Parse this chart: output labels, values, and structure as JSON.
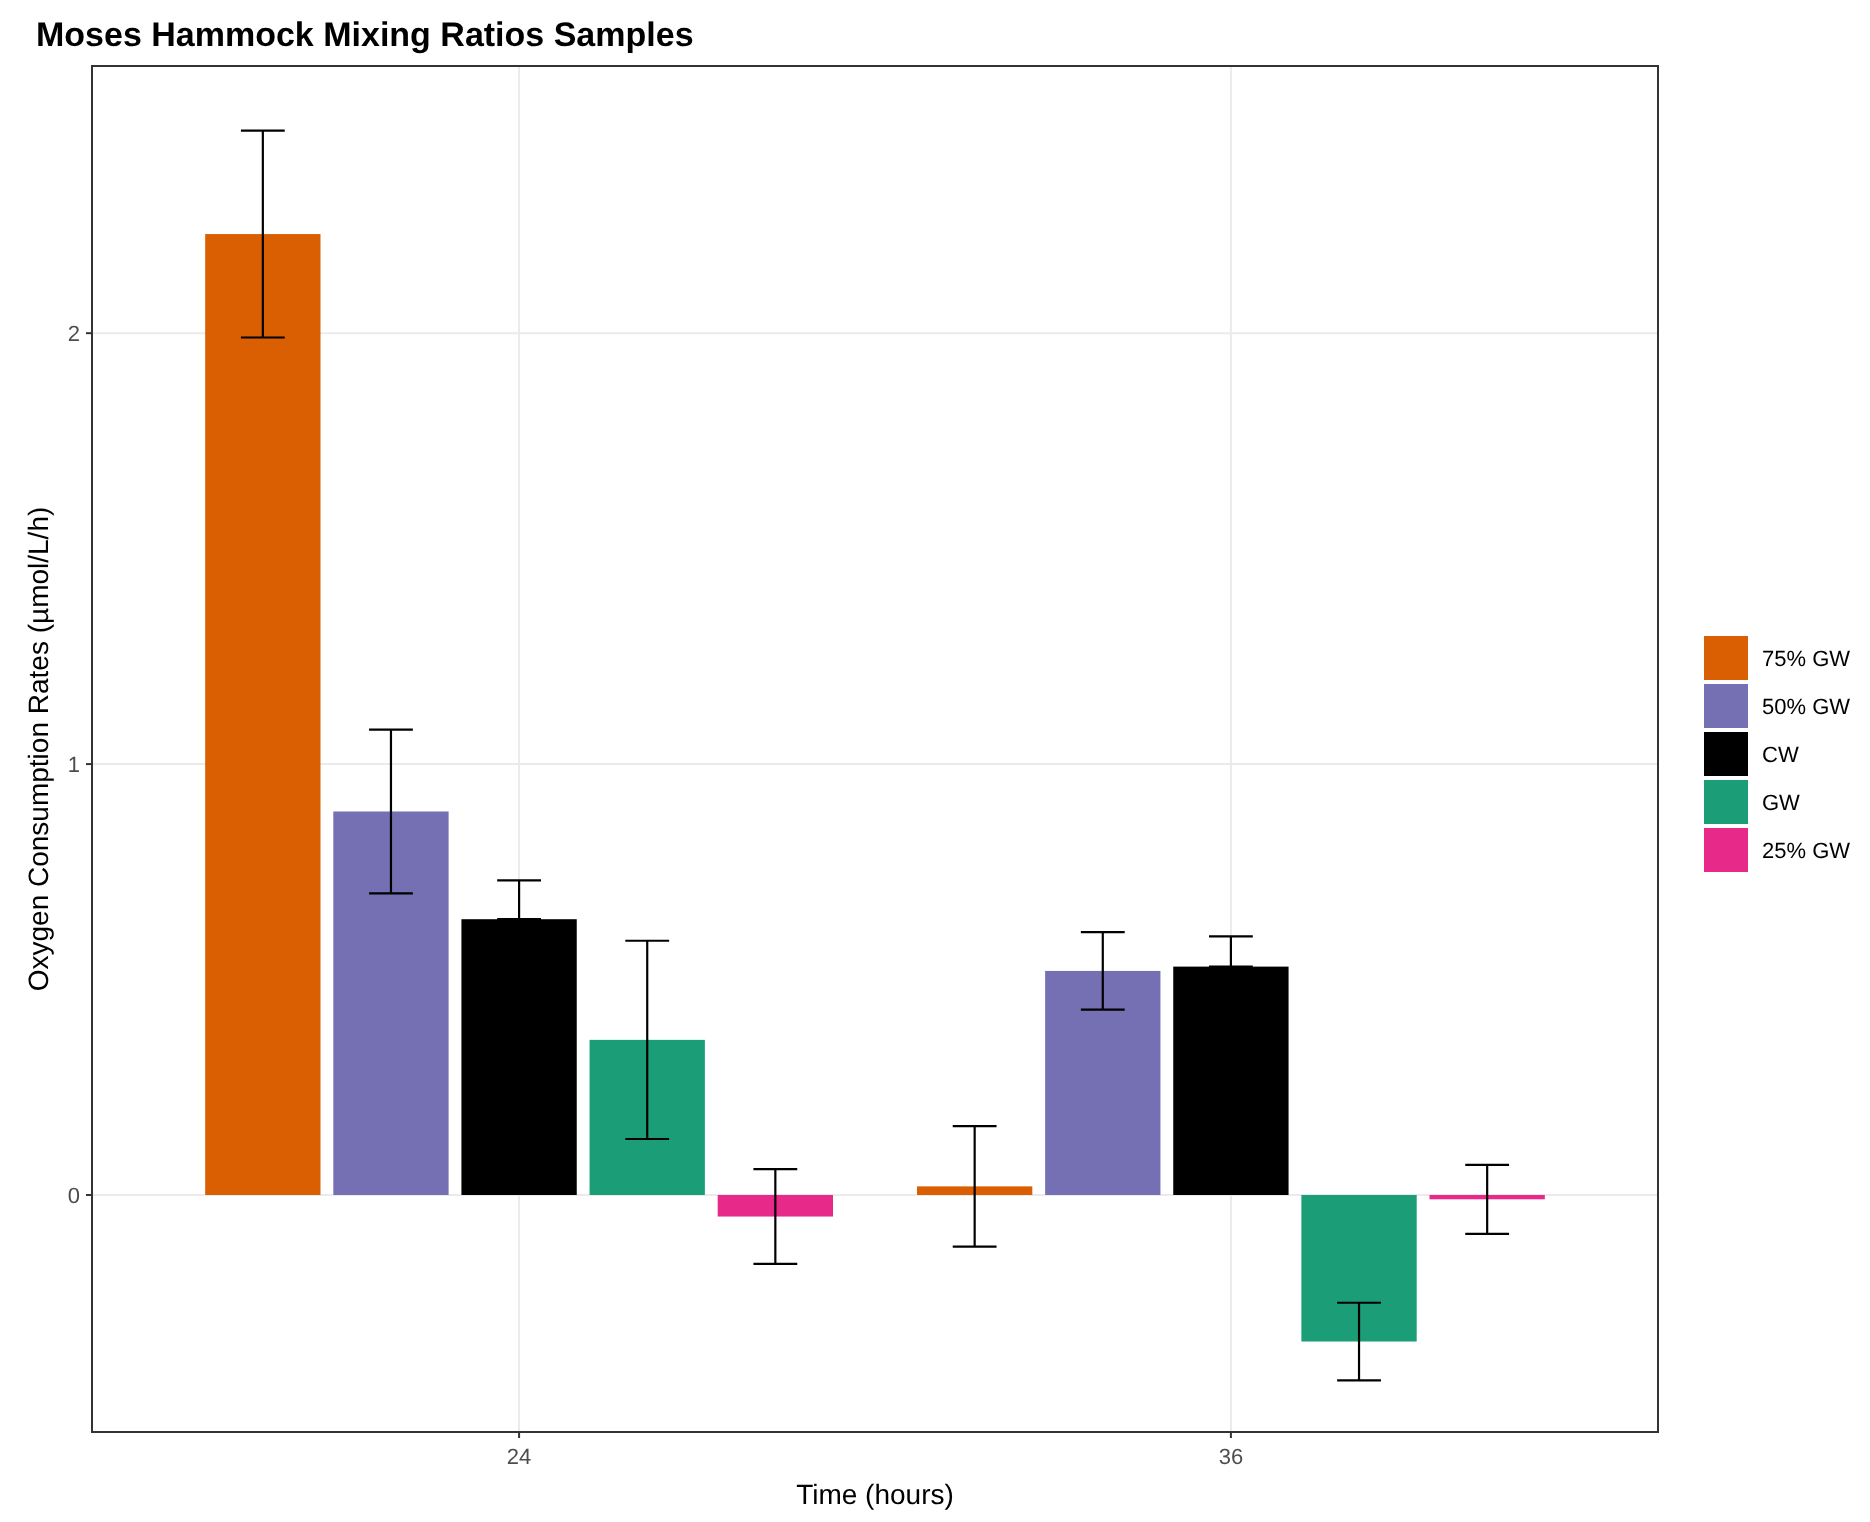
{
  "chart_data": {
    "type": "bar",
    "title": "Moses Hammock Mixing Ratios Samples",
    "xlabel": "Time (hours)",
    "ylabel": "Oxygen Consumption Rates (µmol/L/h)",
    "categories": [
      "24",
      "36"
    ],
    "series": [
      {
        "name": "75% GW",
        "color": "#d95f02",
        "values": [
          2.23,
          0.02
        ],
        "errors": [
          [
            1.99,
            2.47
          ],
          [
            -0.12,
            0.16
          ]
        ]
      },
      {
        "name": "50% GW",
        "color": "#7570b3",
        "values": [
          0.89,
          0.52
        ],
        "errors": [
          [
            0.7,
            1.08
          ],
          [
            0.43,
            0.61
          ]
        ]
      },
      {
        "name": "CW",
        "color": "#000000",
        "values": [
          0.64,
          0.53
        ],
        "errors": [
          [
            0.64,
            0.73
          ],
          [
            0.53,
            0.6
          ]
        ]
      },
      {
        "name": "GW",
        "color": "#1b9e77",
        "values": [
          0.36,
          -0.34
        ],
        "errors": [
          [
            0.13,
            0.59
          ],
          [
            -0.43,
            -0.25
          ]
        ]
      },
      {
        "name": "25% GW",
        "color": "#e7298a",
        "values": [
          -0.05,
          -0.01
        ],
        "errors": [
          [
            -0.16,
            0.06
          ],
          [
            -0.09,
            0.07
          ]
        ]
      }
    ],
    "ylim": [
      -0.55,
      2.62
    ],
    "yticks": [
      0,
      1,
      2
    ],
    "grid": true,
    "legend": "right"
  }
}
